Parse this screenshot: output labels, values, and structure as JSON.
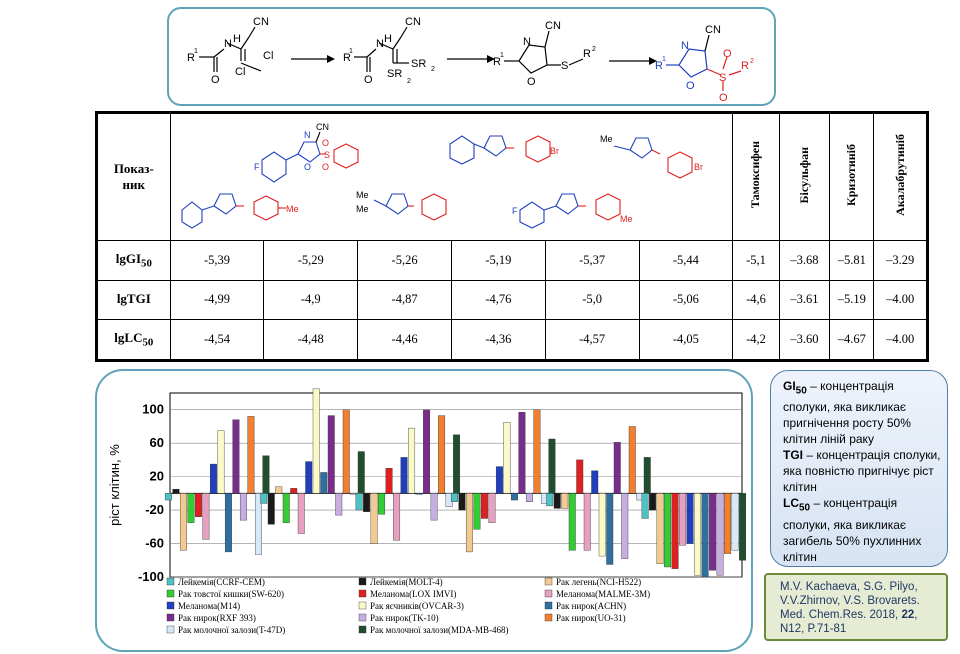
{
  "scheme": {
    "labels": [
      "R",
      "1",
      "N",
      "H",
      "CN",
      "Cl",
      "Cl",
      "O",
      "R",
      "1",
      "N",
      "H",
      "CN",
      "SR",
      "2",
      "SR",
      "2",
      "O",
      "R",
      "1",
      "N",
      "CN",
      "O",
      "S",
      "R",
      "2",
      "R",
      "1",
      "N",
      "CN",
      "O",
      "S",
      "O",
      "O",
      "R",
      "2"
    ]
  },
  "table": {
    "row_header": "Показ-ник",
    "drugs": [
      "Тамоксифен",
      "Бісульфан",
      "Кризотиніб",
      "Акалабрутиніб"
    ],
    "rows": [
      {
        "label": "lgGI",
        "sub": "50",
        "values": [
          "-5,39",
          "-5,29",
          "-5,26",
          "-5,19",
          "-5,37",
          "-5,44",
          "-5,1",
          "–3.68",
          "–5.81",
          "–3.29"
        ]
      },
      {
        "label": "lgTGI",
        "sub": "",
        "values": [
          "-4,99",
          "-4,9",
          "-4,87",
          "-4,76",
          "-5,0",
          "-5,06",
          "-4,6",
          "–3.61",
          "–5.19",
          "–4.00"
        ]
      },
      {
        "label": "lgLC",
        "sub": "50",
        "values": [
          "-4,54",
          "-4,48",
          "-4,46",
          "-4,36",
          "-4,57",
          "-4,05",
          "-4,2",
          "–3.60",
          "–4.67",
          "–4.00"
        ]
      }
    ],
    "structure_labels": {
      "substituents": [
        "F",
        "Br",
        "Br",
        "Me",
        "Me",
        "Me",
        "Me",
        "F",
        "Me"
      ],
      "atoms": [
        "CN",
        "N",
        "O",
        "S",
        "O",
        "O"
      ]
    }
  },
  "chart_data": {
    "type": "bar",
    "ylabel": "ріст клітин, %",
    "ylim": [
      -100,
      120
    ],
    "yticks": [
      100,
      60,
      20,
      -20,
      -60,
      -100
    ],
    "groups": 6,
    "series": [
      {
        "name": "Лейкемія(CCRF-CEM)",
        "color": "#4fc1c5",
        "values": [
          -8,
          -12,
          -20,
          -10,
          -15,
          -30
        ]
      },
      {
        "name": "Лейкемія(MOLT-4)",
        "color": "#1a1a1a",
        "values": [
          5,
          -37,
          -22,
          -20,
          -18,
          -20
        ]
      },
      {
        "name": "Рак легень(NCI-H522)",
        "color": "#f2c991",
        "values": [
          -68,
          8,
          -60,
          -70,
          -18,
          -84
        ]
      },
      {
        "name": "Рак товстої кишки(SW-620)",
        "color": "#33cc33",
        "values": [
          -35,
          -35,
          -25,
          -43,
          -68,
          -88
        ]
      },
      {
        "name": "Меланома(LOX IMVI)",
        "color": "#e02020",
        "values": [
          -28,
          6,
          30,
          -30,
          40,
          -90
        ]
      },
      {
        "name": "Меланома(MALME-3M)",
        "color": "#e8a0c0",
        "values": [
          -55,
          -48,
          -56,
          -35,
          -68,
          -62
        ]
      },
      {
        "name": "Меланома(M14)",
        "color": "#1f3fbf",
        "values": [
          35,
          38,
          43,
          32,
          27,
          -60
        ]
      },
      {
        "name": "Рак яєчників(OVCAR-3)",
        "color": "#fafac8",
        "values": [
          75,
          125,
          78,
          85,
          -75,
          -98
        ]
      },
      {
        "name": "Рак нирок(ACHN)",
        "color": "#2f6fa0",
        "values": [
          -70,
          25,
          0,
          -8,
          -85,
          -100
        ]
      },
      {
        "name": "Рак нирок(RXF 393)",
        "color": "#7a2c8c",
        "values": [
          88,
          93,
          100,
          97,
          61,
          -92
        ]
      },
      {
        "name": "Рак нирок(TK-10)",
        "color": "#c7aee0",
        "values": [
          -32,
          -26,
          -32,
          -10,
          -78,
          -98
        ]
      },
      {
        "name": "Рак нирок(UO-31)",
        "color": "#f08030",
        "values": [
          92,
          100,
          93,
          100,
          80,
          -72
        ]
      },
      {
        "name": "Рак молочної залози(T-47D)",
        "color": "#d8e8f8",
        "values": [
          -73,
          0,
          -16,
          -12,
          -8,
          -68
        ]
      },
      {
        "name": "Рак молочної залози(MDA-MB-468)",
        "color": "#1f4f2f",
        "values": [
          45,
          50,
          70,
          65,
          43,
          -80
        ]
      }
    ]
  },
  "definitions": {
    "gi_term": "GI",
    "gi_sub": "50",
    "gi_text": " – концентрація сполуки, яка викликає пригнічення росту 50% клітин ліній раку",
    "tgi_term": "TGI",
    "tgi_text": " – концентрація сполуки, яка повністю пригнічує ріст клітин",
    "lc_term": "LC",
    "lc_sub": "50",
    "lc_text": " – концентрація сполуки, яка викликає загибель 50% пухлинних клітин"
  },
  "citation": {
    "line1": "M.V. Kachaeva, S.G. Pilyo, V.V.Zhirnov, V.S. Brovarets. Med. Chem.Res. 2018, ",
    "volume": "22",
    "line2": ", N12, P.71-81"
  }
}
